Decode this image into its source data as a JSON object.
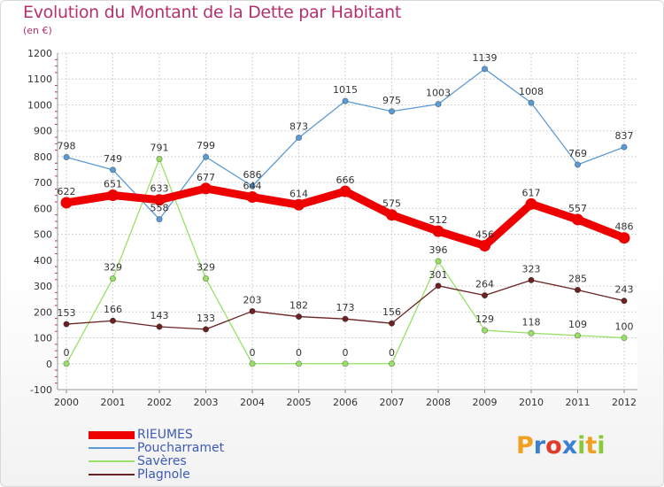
{
  "header": {
    "title": "Evolution du Montant de la Dette par Habitant",
    "unit": "(en €)"
  },
  "logo": {
    "text": "Proxiti",
    "colors": [
      "#f0a020",
      "#3a7fd0",
      "#e23a2a",
      "#3a7fd0",
      "#8cc83a",
      "#f0a020",
      "#8cc83a"
    ]
  },
  "chart_data": {
    "type": "line",
    "title": "Evolution du Montant de la Dette par Habitant",
    "ylabel": "(en €)",
    "xlabel": "",
    "x": [
      "2000",
      "2001",
      "2002",
      "2003",
      "2004",
      "2005",
      "2006",
      "2007",
      "2008",
      "2009",
      "2010",
      "2011",
      "2012"
    ],
    "ylim": [
      -100,
      1200
    ],
    "yticks": [
      "-100",
      "0",
      "100",
      "200",
      "300",
      "400",
      "500",
      "600",
      "700",
      "800",
      "900",
      "1000",
      "1100",
      "1200"
    ],
    "grid": true,
    "legend_position": "bottom-left",
    "series": [
      {
        "name": "RIEUMES",
        "color": "#ee0000",
        "values": [
          622,
          651,
          633,
          677,
          644,
          614,
          666,
          575,
          512,
          456,
          617,
          557,
          486
        ],
        "labels": [
          "622",
          "651",
          "633",
          "677",
          "644",
          "614",
          "666",
          "575",
          "512",
          "456",
          "617",
          "557",
          "486"
        ]
      },
      {
        "name": "Poucharramet",
        "color": "#5b9bd5",
        "values": [
          798,
          749,
          558,
          799,
          686,
          873,
          1015,
          975,
          1003,
          1139,
          1008,
          769,
          837
        ],
        "labels": [
          "798",
          "749",
          "558",
          "799",
          "686",
          "873",
          "1015",
          "975",
          "1003",
          "1139",
          "1008",
          "769",
          "837"
        ]
      },
      {
        "name": "Savères",
        "color": "#99e066",
        "values": [
          0,
          329,
          791,
          329,
          0,
          0,
          0,
          0,
          396,
          129,
          118,
          109,
          100
        ],
        "labels": [
          "0",
          "329",
          "791",
          "329",
          "0",
          "0",
          "0",
          "0",
          "396",
          "129",
          "118",
          "109",
          "100"
        ]
      },
      {
        "name": "Plagnole",
        "color": "#6b2222",
        "values": [
          153,
          166,
          143,
          133,
          203,
          182,
          173,
          156,
          301,
          264,
          323,
          285,
          243
        ],
        "labels": [
          "153",
          "166",
          "143",
          "133",
          "203",
          "182",
          "173",
          "156",
          "301",
          "264",
          "323",
          "285",
          "243"
        ]
      }
    ]
  }
}
